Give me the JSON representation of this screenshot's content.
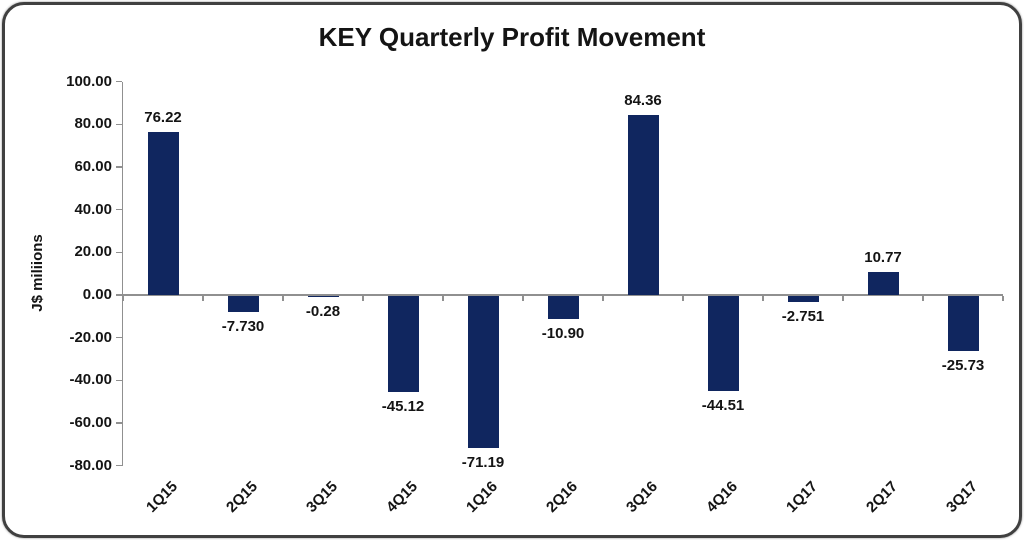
{
  "chart_data": {
    "type": "bar",
    "title": "KEY Quarterly Profit Movement",
    "xlabel": "",
    "ylabel": "J$ miliions",
    "categories": [
      "1Q15",
      "2Q15",
      "3Q15",
      "4Q15",
      "1Q16",
      "2Q16",
      "3Q16",
      "4Q16",
      "1Q17",
      "2Q17",
      "3Q17"
    ],
    "values": [
      76.22,
      -7.73,
      -0.28,
      -45.12,
      -71.19,
      -10.9,
      84.36,
      -44.51,
      -2.751,
      10.77,
      -25.73
    ],
    "value_labels": [
      "76.22",
      "-7.730",
      "-0.28",
      "-45.12",
      "-71.19",
      "-10.90",
      "84.36",
      "-44.51",
      "-2.751",
      "10.77",
      "-25.73"
    ],
    "ytick_labels": [
      "100.00",
      "80.00",
      "60.00",
      "40.00",
      "20.00",
      "0.00",
      "-20.00",
      "-40.00",
      "-60.00",
      "-80.00"
    ],
    "ylim": [
      -80,
      100
    ],
    "ytick_step": 20,
    "grid": false,
    "legend": "none",
    "bar_color": "#10265F",
    "axis_color": "#909090",
    "text_color": "#141414",
    "border_color": "#404040",
    "background_color": "#FFFFFF"
  }
}
